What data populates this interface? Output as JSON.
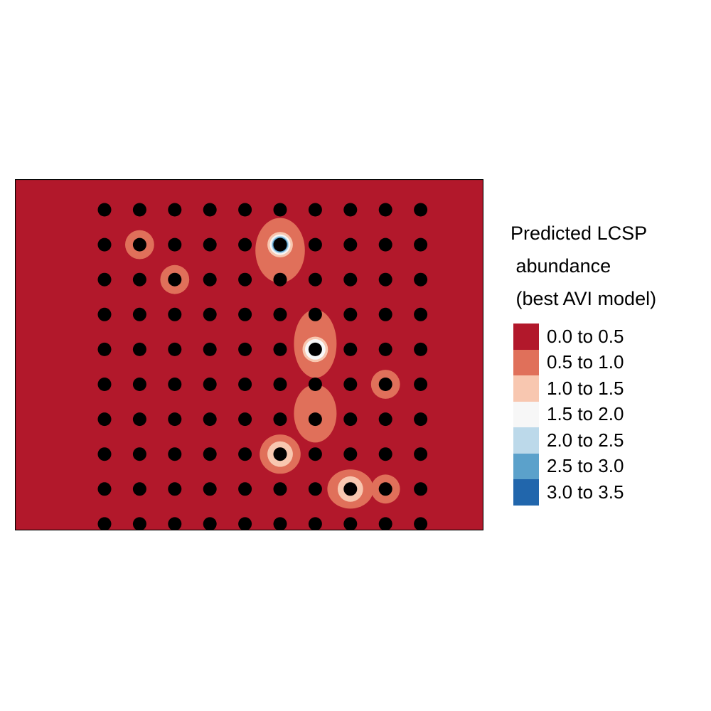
{
  "legend": {
    "title_lines": [
      "Predicted LCSP",
      " abundance",
      " (best AVI model)"
    ],
    "classes": [
      {
        "label": "0.0 to 0.5",
        "color": "#b2182b"
      },
      {
        "label": "0.5 to 1.0",
        "color": "#e0705a"
      },
      {
        "label": "1.0 to 1.5",
        "color": "#f8c7b0"
      },
      {
        "label": "1.5 to 2.0",
        "color": "#f7f7f7"
      },
      {
        "label": "2.0 to 2.5",
        "color": "#bcd9ea"
      },
      {
        "label": "2.5 to 3.0",
        "color": "#5ba1cb"
      },
      {
        "label": "3.0 to 3.5",
        "color": "#2166ac"
      }
    ]
  },
  "map": {
    "background_class": "0.0 to 0.5",
    "survey_points": {
      "rows": 10,
      "cols": 10,
      "color": "#000000"
    },
    "hotspots": [
      {
        "row": 1,
        "col": 5,
        "peak_class": "3.0 to 3.5"
      },
      {
        "row": 1,
        "col": 1,
        "peak_class": "0.5 to 1.0"
      },
      {
        "row": 2,
        "col": 2,
        "peak_class": "0.5 to 1.0"
      },
      {
        "row": 4,
        "col": 6,
        "peak_class": "1.5 to 2.0"
      },
      {
        "row": 5,
        "col": 8,
        "peak_class": "0.5 to 1.0"
      },
      {
        "row": 6,
        "col": 6,
        "peak_class": "0.5 to 1.0"
      },
      {
        "row": 7,
        "col": 5,
        "peak_class": "1.0 to 1.5"
      },
      {
        "row": 8,
        "col": 7,
        "peak_class": "1.0 to 1.5"
      },
      {
        "row": 8,
        "col": 8,
        "peak_class": "0.5 to 1.0"
      }
    ]
  }
}
